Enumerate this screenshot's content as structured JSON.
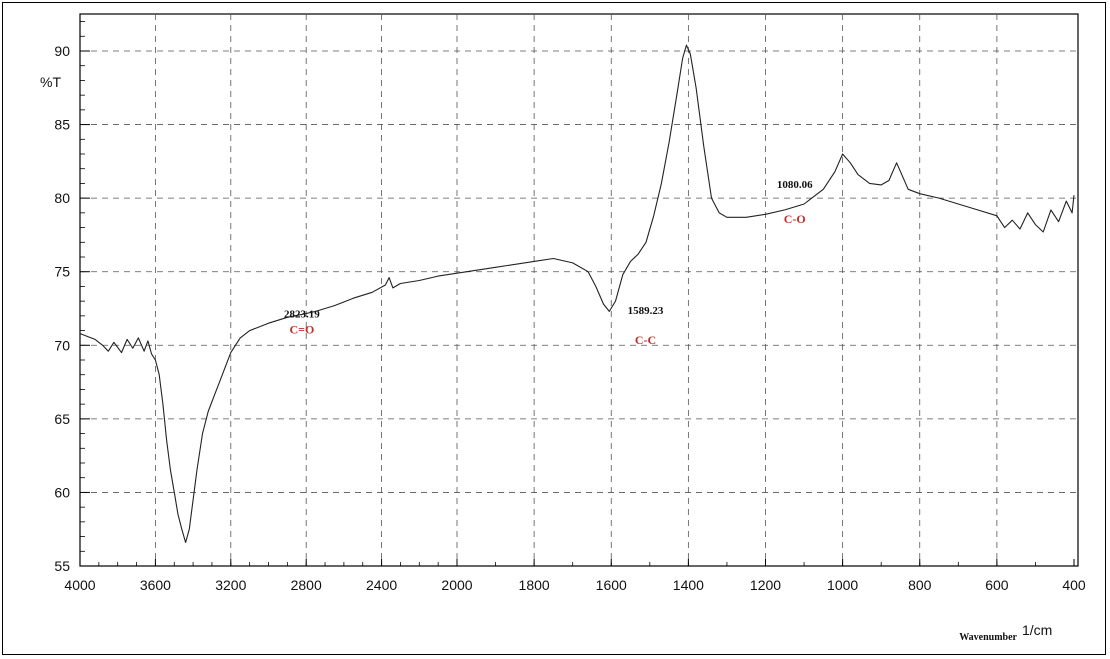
{
  "chart_data": {
    "type": "line",
    "title": "",
    "ylabel": "%T",
    "xlabel_small": "Wavenumber",
    "xlabel_unit": "1/cm",
    "xlim": [
      4000,
      400
    ],
    "ylim": [
      55,
      93
    ],
    "grid": true,
    "x_ticks": [
      "4000",
      "3600",
      "3200",
      "2800",
      "2400",
      "2000",
      "1800",
      "1600",
      "1400",
      "1200",
      "1000",
      "800",
      "600",
      "400"
    ],
    "y_ticks": [
      "55",
      "60",
      "65",
      "70",
      "75",
      "80",
      "85",
      "90"
    ],
    "series": [
      {
        "points": [
          [
            4000,
            70.8
          ],
          [
            3960,
            70.6
          ],
          [
            3920,
            70.4
          ],
          [
            3880,
            70.0
          ],
          [
            3850,
            69.6
          ],
          [
            3820,
            70.2
          ],
          [
            3780,
            69.5
          ],
          [
            3750,
            70.4
          ],
          [
            3720,
            69.8
          ],
          [
            3690,
            70.5
          ],
          [
            3660,
            69.6
          ],
          [
            3640,
            70.3
          ],
          [
            3620,
            69.4
          ],
          [
            3600,
            69.0
          ],
          [
            3580,
            68.0
          ],
          [
            3560,
            66.0
          ],
          [
            3540,
            63.5
          ],
          [
            3520,
            61.5
          ],
          [
            3500,
            60.0
          ],
          [
            3480,
            58.5
          ],
          [
            3460,
            57.5
          ],
          [
            3440,
            56.6
          ],
          [
            3420,
            57.5
          ],
          [
            3400,
            59.5
          ],
          [
            3380,
            61.5
          ],
          [
            3350,
            64.0
          ],
          [
            3320,
            65.5
          ],
          [
            3290,
            66.5
          ],
          [
            3260,
            67.5
          ],
          [
            3230,
            68.5
          ],
          [
            3200,
            69.5
          ],
          [
            3150,
            70.5
          ],
          [
            3100,
            71.0
          ],
          [
            3000,
            71.5
          ],
          [
            2900,
            71.9
          ],
          [
            2823,
            72.1
          ],
          [
            2750,
            72.3
          ],
          [
            2650,
            72.7
          ],
          [
            2550,
            73.2
          ],
          [
            2450,
            73.6
          ],
          [
            2380,
            74.1
          ],
          [
            2360,
            74.6
          ],
          [
            2340,
            73.9
          ],
          [
            2300,
            74.2
          ],
          [
            2200,
            74.4
          ],
          [
            2100,
            74.7
          ],
          [
            2000,
            74.9
          ],
          [
            1900,
            75.3
          ],
          [
            1800,
            75.7
          ],
          [
            1750,
            75.9
          ],
          [
            1700,
            75.6
          ],
          [
            1660,
            75.0
          ],
          [
            1640,
            74.0
          ],
          [
            1620,
            72.8
          ],
          [
            1605,
            72.3
          ],
          [
            1589,
            73.0
          ],
          [
            1570,
            74.8
          ],
          [
            1550,
            75.7
          ],
          [
            1530,
            76.2
          ],
          [
            1510,
            77.0
          ],
          [
            1490,
            78.8
          ],
          [
            1470,
            81.0
          ],
          [
            1450,
            83.8
          ],
          [
            1430,
            87.0
          ],
          [
            1415,
            89.5
          ],
          [
            1405,
            90.4
          ],
          [
            1395,
            89.8
          ],
          [
            1380,
            87.5
          ],
          [
            1360,
            83.5
          ],
          [
            1340,
            80.0
          ],
          [
            1320,
            79.0
          ],
          [
            1300,
            78.7
          ],
          [
            1250,
            78.7
          ],
          [
            1200,
            78.9
          ],
          [
            1150,
            79.2
          ],
          [
            1100,
            79.6
          ],
          [
            1080,
            80.0
          ],
          [
            1050,
            80.6
          ],
          [
            1020,
            81.8
          ],
          [
            1000,
            83.0
          ],
          [
            980,
            82.4
          ],
          [
            960,
            81.6
          ],
          [
            930,
            81.0
          ],
          [
            900,
            80.9
          ],
          [
            880,
            81.2
          ],
          [
            860,
            82.4
          ],
          [
            850,
            81.8
          ],
          [
            830,
            80.6
          ],
          [
            800,
            80.3
          ],
          [
            750,
            80.0
          ],
          [
            700,
            79.6
          ],
          [
            650,
            79.2
          ],
          [
            600,
            78.8
          ],
          [
            580,
            78.0
          ],
          [
            560,
            78.5
          ],
          [
            540,
            77.9
          ],
          [
            520,
            79.0
          ],
          [
            500,
            78.2
          ],
          [
            480,
            77.7
          ],
          [
            460,
            79.2
          ],
          [
            440,
            78.4
          ],
          [
            420,
            79.8
          ],
          [
            405,
            79.0
          ],
          [
            400,
            80.2
          ]
        ]
      }
    ],
    "annotations": [
      {
        "wavenumber": "2823.19",
        "group": "C=O",
        "x": 2823,
        "y": 72.1
      },
      {
        "wavenumber": "1589.23",
        "group": "C-C",
        "x": 1589,
        "y": 73.0
      },
      {
        "wavenumber": "1080.06",
        "group": "C-O",
        "x": 1080,
        "y": 80.0
      }
    ],
    "colors": {
      "line": "#222222",
      "grid": "#555555",
      "group_label": "#c0302a"
    }
  }
}
